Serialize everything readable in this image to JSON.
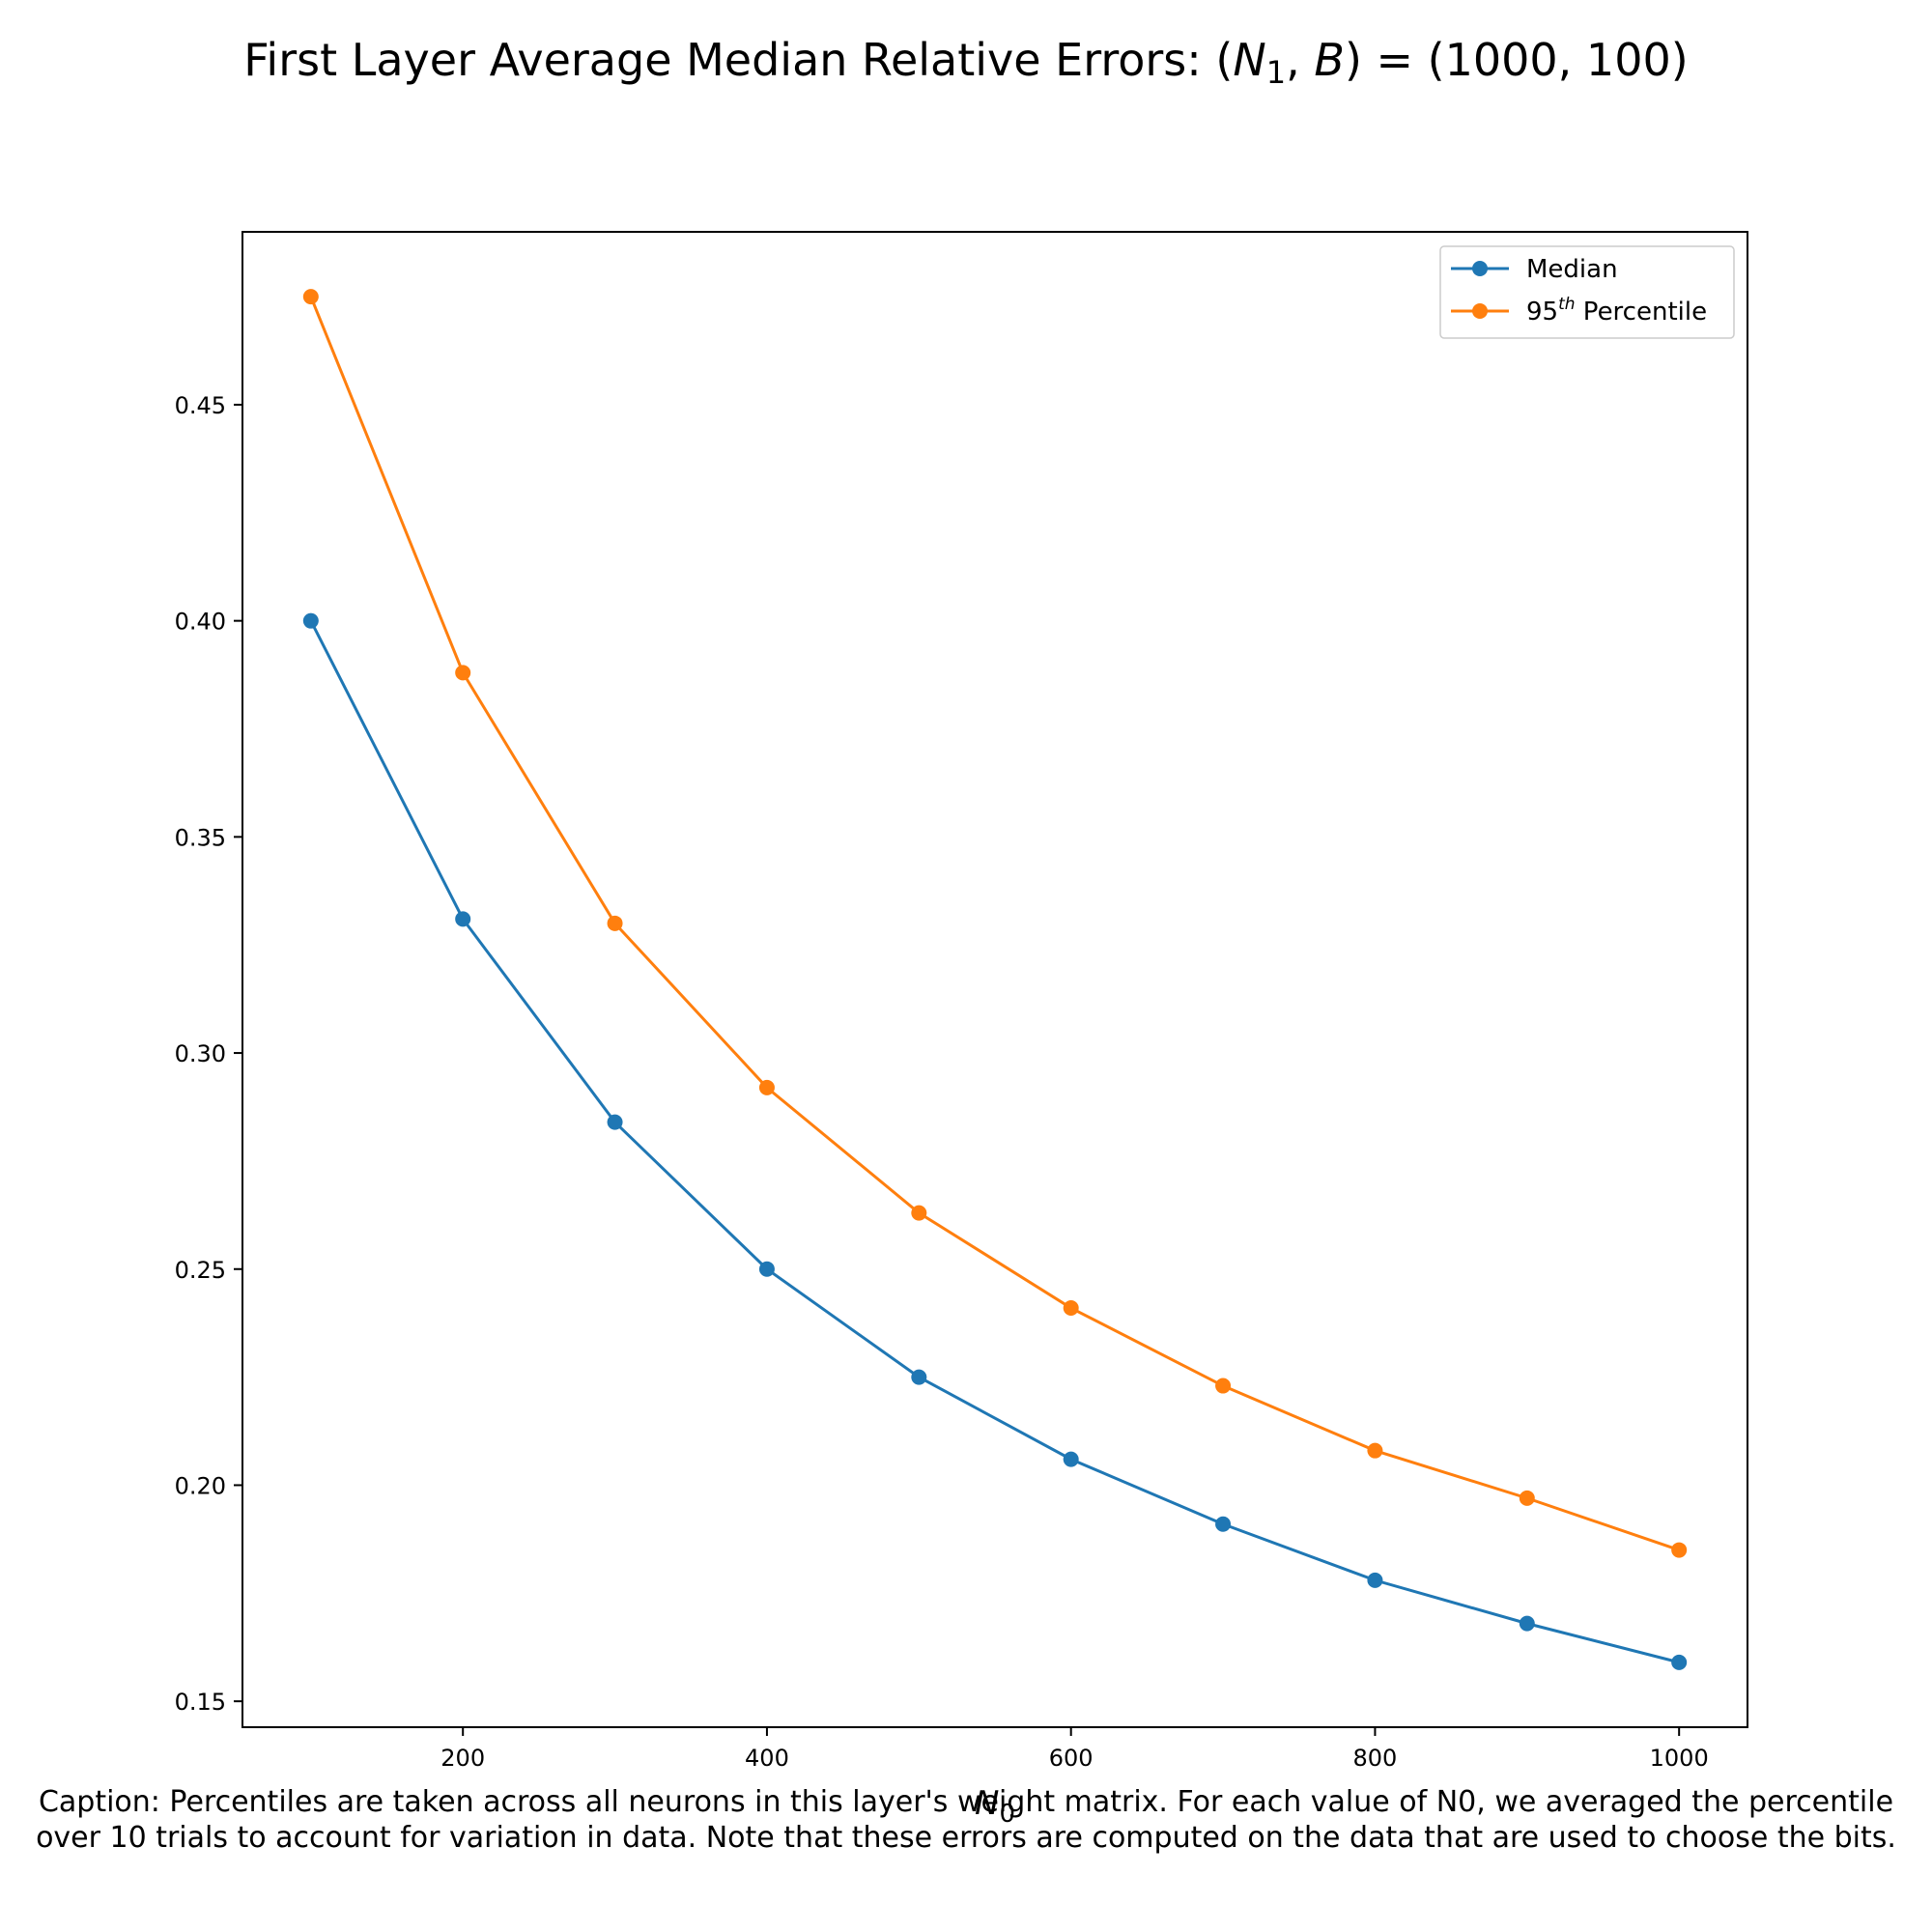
{
  "chart_data": {
    "type": "line",
    "title": "First Layer Average Median Relative Errors: (N1, B) = (1000, 100)",
    "title_parts": {
      "prefix": "First Layer Average Median Relative Errors: (",
      "n_symbol": "N",
      "n_subscript": "1",
      "separator": ", ",
      "b_symbol": "B",
      "suffix": ") = (1000, 100)"
    },
    "xlabel": "N0",
    "xlabel_parts": {
      "symbol": "N",
      "subscript": "0"
    },
    "ylabel": "",
    "x": [
      100,
      200,
      300,
      400,
      500,
      600,
      700,
      800,
      900,
      1000
    ],
    "xlim": [
      55,
      1045
    ],
    "ylim": [
      0.144,
      0.49
    ],
    "xticks": [
      200,
      400,
      600,
      800,
      1000
    ],
    "xtick_labels": [
      "200",
      "400",
      "600",
      "800",
      "1000"
    ],
    "yticks": [
      0.15,
      0.2,
      0.25,
      0.3,
      0.35,
      0.4,
      0.45
    ],
    "ytick_labels": [
      "0.15",
      "0.20",
      "0.25",
      "0.30",
      "0.35",
      "0.40",
      "0.45"
    ],
    "grid": false,
    "legend_position": "top-right",
    "series": [
      {
        "name": "Median",
        "color": "#1f77b4",
        "values": [
          0.4,
          0.331,
          0.284,
          0.25,
          0.225,
          0.206,
          0.191,
          0.178,
          0.168,
          0.159
        ]
      },
      {
        "name": "95th Percentile",
        "legend_parts": {
          "number": "95",
          "superscript": "th",
          "rest": " Percentile"
        },
        "color": "#ff7f0e",
        "values": [
          0.475,
          0.388,
          0.33,
          0.292,
          0.263,
          0.241,
          0.223,
          0.208,
          0.197,
          0.185
        ]
      }
    ]
  },
  "caption": "Caption: Percentiles are taken across all neurons in this layer's weight matrix. For each value of N0, we averaged the percentile over 10 trials to account for variation in data. Note that these errors are computed on the data that are used to choose the bits."
}
